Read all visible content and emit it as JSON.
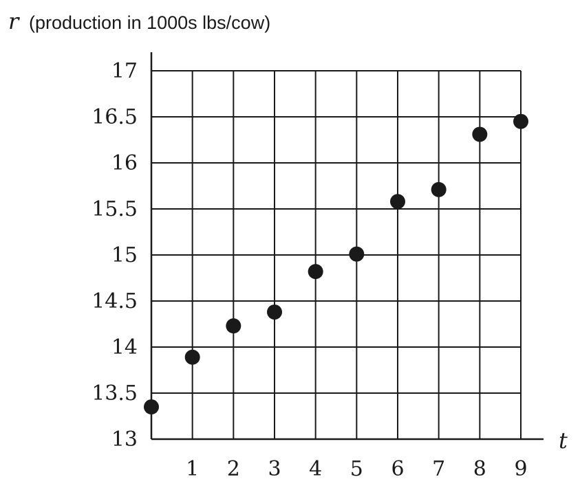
{
  "chart_data": {
    "type": "scatter",
    "title": "",
    "xlabel": "t",
    "ylabel": "r",
    "ylabel_description": "(production in 1000s lbs/cow)",
    "xlim": [
      0,
      9
    ],
    "ylim": [
      13,
      17
    ],
    "x_ticks": [
      1,
      2,
      3,
      4,
      5,
      6,
      7,
      8,
      9
    ],
    "x_tick_labels": [
      "1",
      "2",
      "3",
      "4",
      "5",
      "6",
      "7",
      "8",
      "9"
    ],
    "y_ticks": [
      13,
      13.5,
      14,
      14.5,
      15,
      15.5,
      16,
      16.5,
      17
    ],
    "y_tick_labels": [
      "13",
      "13.5",
      "14",
      "14.5",
      "15",
      "15.5",
      "16",
      "16.5",
      "17"
    ],
    "grid": true,
    "series": [
      {
        "x": [
          0,
          1,
          2,
          3,
          4,
          5,
          6,
          7,
          8,
          9
        ],
        "y": [
          13.35,
          13.89,
          14.23,
          14.38,
          14.82,
          15.01,
          15.58,
          15.71,
          16.31,
          16.45
        ]
      }
    ],
    "point_color": "#1a1a1a"
  }
}
